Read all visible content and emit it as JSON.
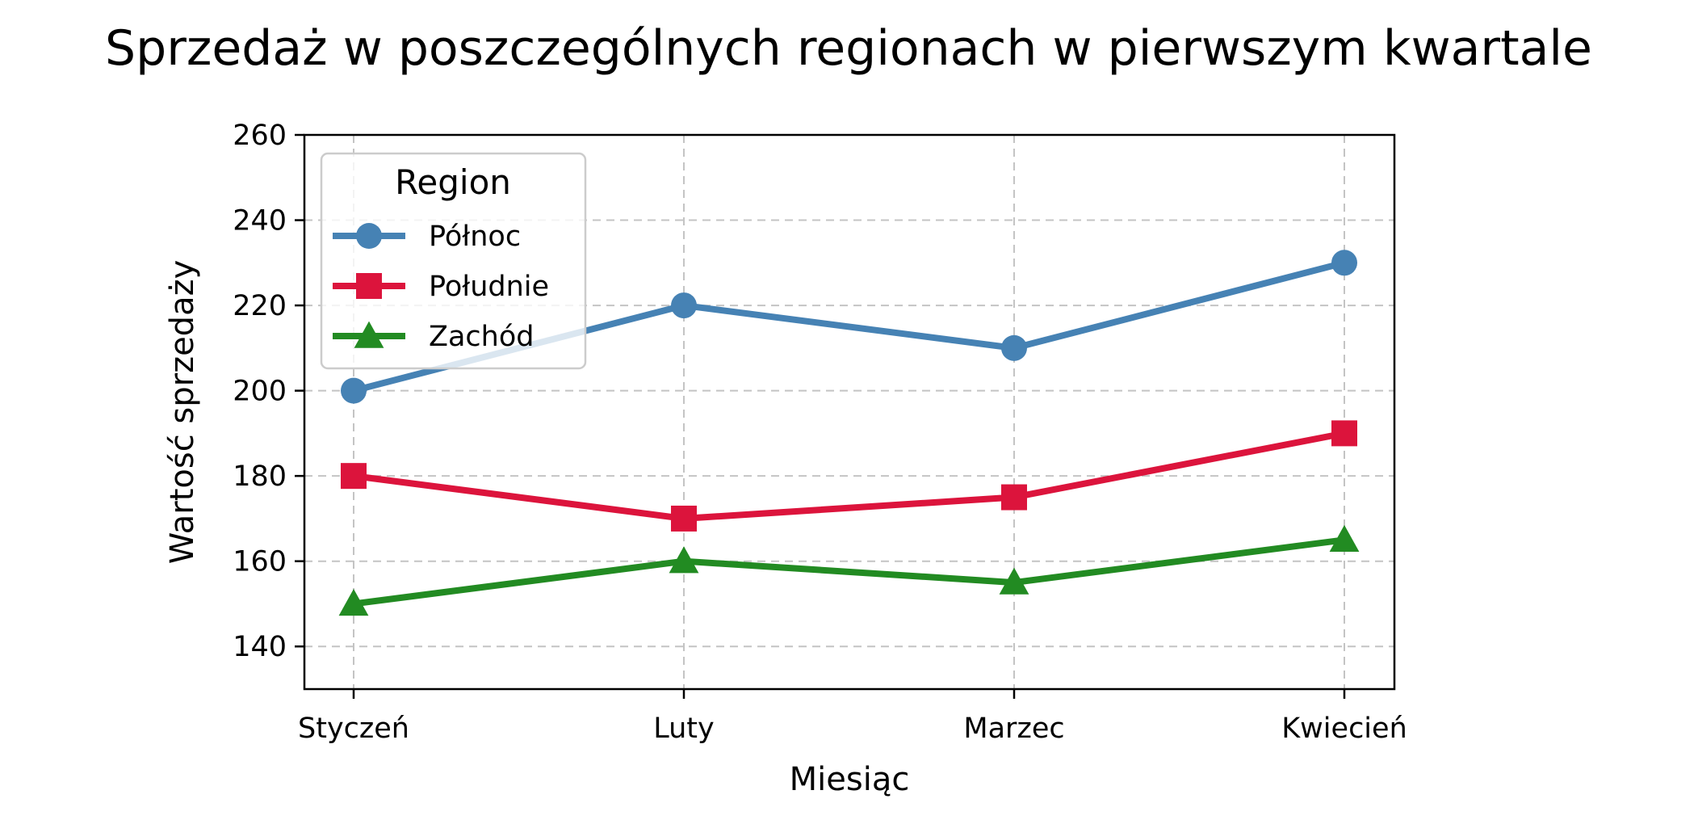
{
  "chart_data": {
    "type": "line",
    "title": "Sprzedaż w poszczególnych regionach w pierwszym kwartale",
    "xlabel": "Miesiąc",
    "ylabel": "Wartość sprzedaży",
    "categories": [
      "Styczeń",
      "Luty",
      "Marzec",
      "Kwiecień"
    ],
    "ylim": [
      130,
      260
    ],
    "yticks": [
      140,
      160,
      180,
      200,
      220,
      240,
      260
    ],
    "grid": true,
    "legend": {
      "title": "Region",
      "placement": "top-left"
    },
    "series": [
      {
        "name": "Północ",
        "values": [
          200,
          220,
          210,
          230
        ],
        "color": "#4682b4",
        "marker": "circle"
      },
      {
        "name": "Południe",
        "values": [
          180,
          170,
          175,
          190
        ],
        "color": "#dc143c",
        "marker": "square"
      },
      {
        "name": "Zachód",
        "values": [
          150,
          160,
          155,
          165
        ],
        "color": "#228b22",
        "marker": "triangle"
      }
    ]
  }
}
